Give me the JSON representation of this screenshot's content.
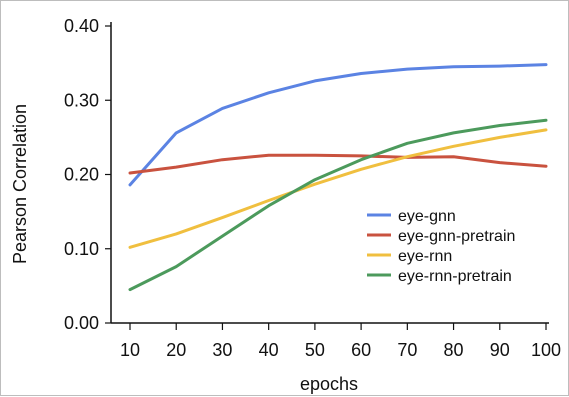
{
  "chart_data": {
    "type": "line",
    "title": "",
    "xlabel": "epochs",
    "ylabel": "Pearson Correlation",
    "x": [
      10,
      20,
      30,
      40,
      50,
      60,
      70,
      80,
      90,
      100
    ],
    "x_tick_labels": [
      "10",
      "20",
      "30",
      "40",
      "50",
      "60",
      "70",
      "80",
      "90",
      "100"
    ],
    "ylim": [
      0,
      0.4
    ],
    "y_ticks": [
      0,
      0.1,
      0.2,
      0.3,
      0.4
    ],
    "y_tick_labels": [
      "0.00",
      "0.10",
      "0.20",
      "0.30",
      "0.40"
    ],
    "grid": false,
    "legend_position": "right",
    "series": [
      {
        "name": "eye-gnn",
        "color": "#5b83e3",
        "values": [
          0.186,
          0.256,
          0.289,
          0.31,
          0.326,
          0.336,
          0.342,
          0.345,
          0.346,
          0.348
        ]
      },
      {
        "name": "eye-gnn-pretrain",
        "color": "#c9523f",
        "values": [
          0.202,
          0.21,
          0.22,
          0.226,
          0.226,
          0.225,
          0.223,
          0.224,
          0.216,
          0.211
        ]
      },
      {
        "name": "eye-rnn",
        "color": "#f0bf3f",
        "values": [
          0.102,
          0.12,
          0.142,
          0.165,
          0.187,
          0.207,
          0.224,
          0.238,
          0.25,
          0.26
        ]
      },
      {
        "name": "eye-rnn-pretrain",
        "color": "#4c9a5c",
        "values": [
          0.045,
          0.076,
          0.117,
          0.158,
          0.193,
          0.22,
          0.242,
          0.256,
          0.266,
          0.273
        ]
      }
    ]
  }
}
